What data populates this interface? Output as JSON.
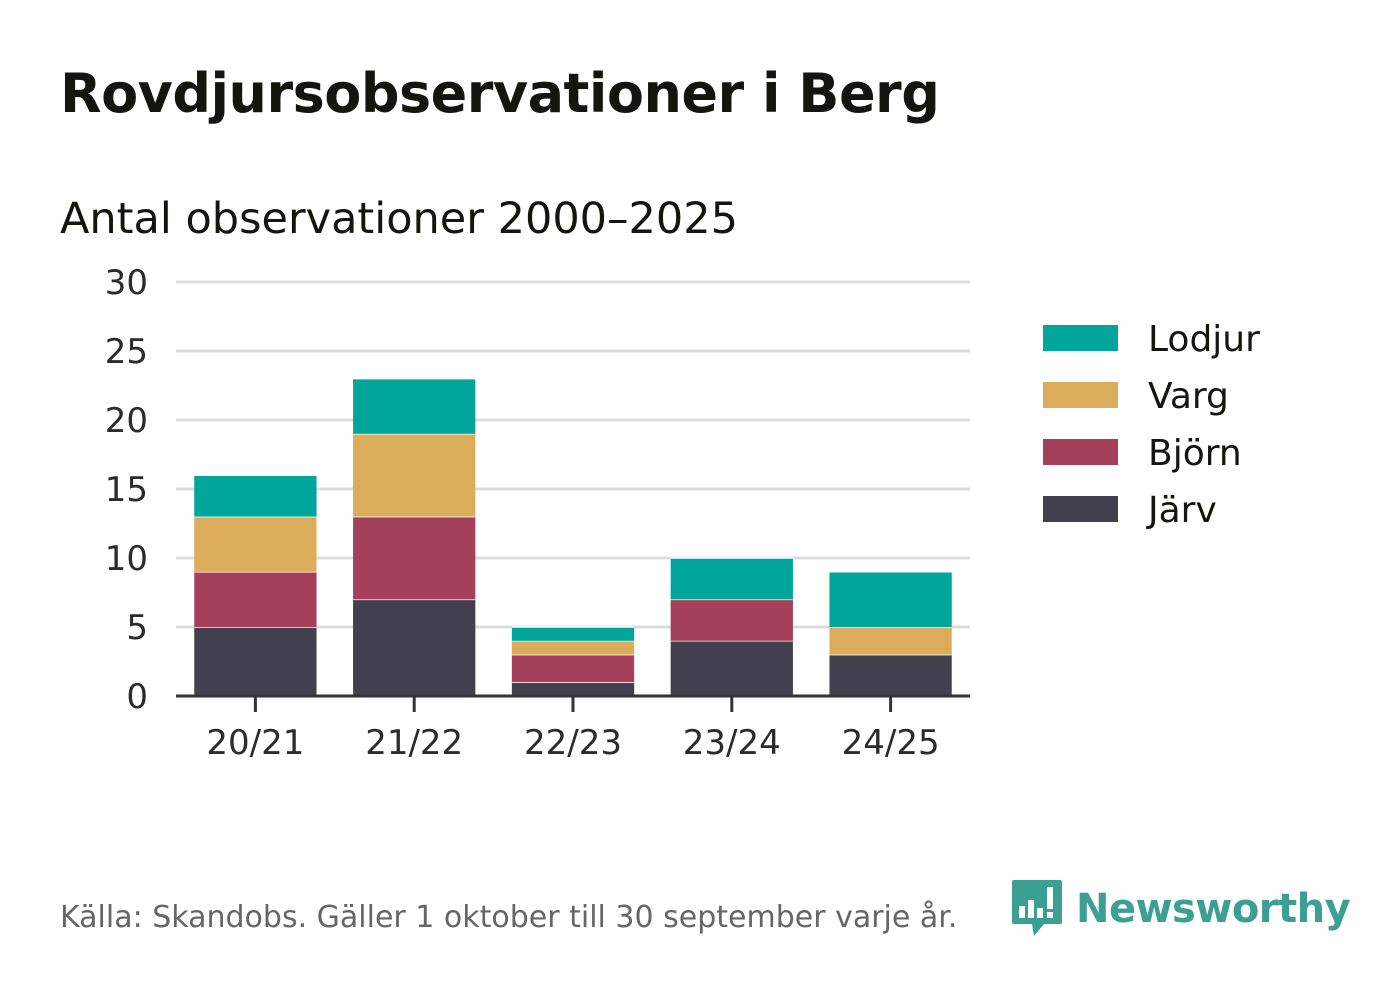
{
  "title": "Rovdjursobservationer i Berg",
  "source_text": "Källa: Skandobs. Gäller 1 oktober till 30 september varje år.",
  "brand": {
    "name": "Newsworthy",
    "color": "#3c9f94"
  },
  "chart_data": {
    "type": "bar",
    "stacked": true,
    "title": "Antal observationer 2000–2025",
    "xlabel": "",
    "ylabel": "",
    "categories": [
      "20/21",
      "21/22",
      "22/23",
      "23/24",
      "24/25"
    ],
    "ylim": [
      0,
      30
    ],
    "yticks": [
      0,
      5,
      10,
      15,
      20,
      25,
      30
    ],
    "grid": true,
    "legend_position": "right",
    "series": [
      {
        "name": "Järv",
        "color": "#42404f",
        "values": [
          5,
          7,
          1,
          4,
          3
        ]
      },
      {
        "name": "Björn",
        "color": "#a5405c",
        "values": [
          4,
          6,
          2,
          3,
          0
        ]
      },
      {
        "name": "Varg",
        "color": "#dbac5a",
        "values": [
          4,
          6,
          1,
          0,
          2
        ]
      },
      {
        "name": "Lodjur",
        "color": "#00a59b",
        "values": [
          3,
          4,
          1,
          3,
          4
        ]
      }
    ]
  }
}
